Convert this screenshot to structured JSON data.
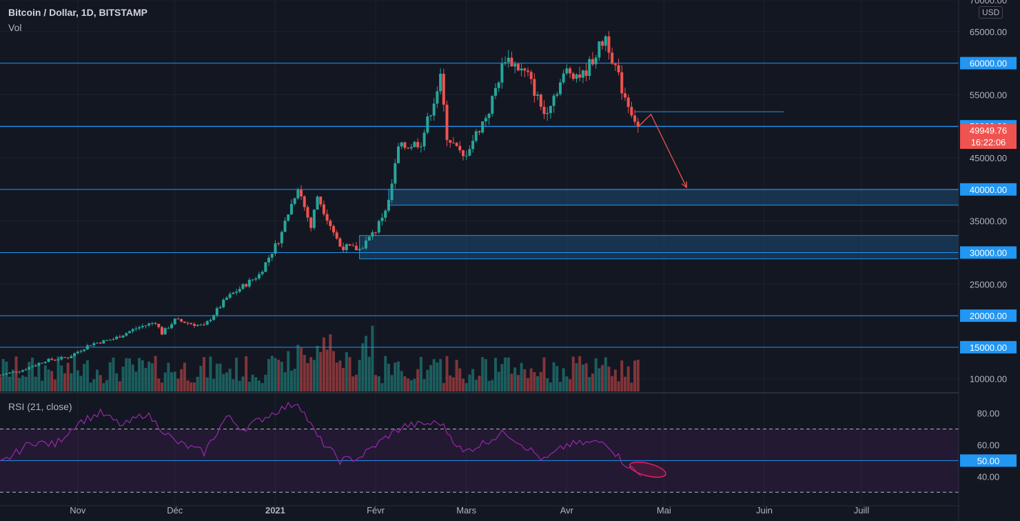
{
  "header": {
    "symbol_title": "Bitcoin / Dollar, 1D, BITSTAMP",
    "volume_label": "Vol",
    "currency": "USD",
    "rsi_label": "RSI (21, close)"
  },
  "price_badge": {
    "price": "49949.76",
    "countdown": "16:22:06"
  },
  "colors": {
    "background": "#131722",
    "grid": "#1e222d",
    "up": "#26a69a",
    "down": "#ef5350",
    "hline": "#2196f3",
    "zone": "#1e4a72",
    "rsi_line": "#9c27b0",
    "annotation": "#e91e63"
  },
  "chart_data": {
    "type": "candlestick",
    "title": "Bitcoin / Dollar, 1D, BITSTAMP",
    "x_ticks": [
      "Nov",
      "Déc",
      "2021",
      "Févr",
      "Mars",
      "Avr",
      "Mai",
      "Juin",
      "Juill"
    ],
    "x_tick_dates": [
      "2020-11-01",
      "2020-12-01",
      "2021-01-01",
      "2021-02-01",
      "2021-03-01",
      "2021-04-01",
      "2021-05-01",
      "2021-06-01",
      "2021-07-01"
    ],
    "date_range": [
      "2020-10-08",
      "2021-07-31"
    ],
    "price_axis": {
      "ylim": [
        8000,
        70000
      ],
      "ticks": [
        10000,
        15000,
        20000,
        25000,
        30000,
        35000,
        40000,
        45000,
        50000,
        55000,
        60000,
        65000,
        70000
      ],
      "tick_labels": [
        "10000.00",
        "15000.00",
        "20000.00",
        "25000.00",
        "30000.00",
        "35000.00",
        "40000.00",
        "45000.00",
        "50000.00",
        "55000.00",
        "60000.00",
        "65000.00",
        "70000.00"
      ]
    },
    "horizontal_levels": [
      {
        "price": 60000,
        "label": "60000.00"
      },
      {
        "price": 50000,
        "label": "50000.00"
      },
      {
        "price": 40000,
        "label": "40000.00"
      },
      {
        "price": 30000,
        "label": "30000.00"
      },
      {
        "price": 20000,
        "label": "20000.00"
      },
      {
        "price": 15000,
        "label": "15000.00"
      }
    ],
    "plain_levels": [
      {
        "price": 49949.76
      }
    ],
    "short_level": {
      "price": 52300,
      "from": "2021-04-22",
      "to": "2021-06-07"
    },
    "zones": [
      {
        "from": "2021-02-05",
        "low": 37500,
        "high": 40000
      },
      {
        "from": "2021-01-27",
        "low": 29000,
        "high": 32700
      }
    ],
    "price_path": [
      [
        "2020-10-08",
        10600
      ],
      [
        "2020-10-15",
        11400
      ],
      [
        "2020-10-22",
        12900
      ],
      [
        "2020-10-29",
        13400
      ],
      [
        "2020-11-05",
        15500
      ],
      [
        "2020-11-12",
        16300
      ],
      [
        "2020-11-19",
        18000
      ],
      [
        "2020-11-25",
        19000
      ],
      [
        "2020-11-27",
        17200
      ],
      [
        "2020-12-01",
        19300
      ],
      [
        "2020-12-10",
        18300
      ],
      [
        "2020-12-17",
        22800
      ],
      [
        "2020-12-27",
        26500
      ],
      [
        "2021-01-02",
        32000
      ],
      [
        "2021-01-08",
        40500
      ],
      [
        "2021-01-12",
        34000
      ],
      [
        "2021-01-14",
        39000
      ],
      [
        "2021-01-21",
        31000
      ],
      [
        "2021-01-27",
        30500
      ],
      [
        "2021-02-01",
        33500
      ],
      [
        "2021-02-05",
        38000
      ],
      [
        "2021-02-08",
        46500
      ],
      [
        "2021-02-15",
        47500
      ],
      [
        "2021-02-21",
        57500
      ],
      [
        "2021-02-23",
        48500
      ],
      [
        "2021-02-28",
        45000
      ],
      [
        "2021-03-08",
        52500
      ],
      [
        "2021-03-13",
        61000
      ],
      [
        "2021-03-20",
        58000
      ],
      [
        "2021-03-25",
        52000
      ],
      [
        "2021-04-01",
        58800
      ],
      [
        "2021-04-06",
        58000
      ],
      [
        "2021-04-13",
        64200
      ],
      [
        "2021-04-18",
        56000
      ],
      [
        "2021-04-23",
        49949.76
      ]
    ],
    "annotations": {
      "arrow_path": [
        [
          "2021-04-23",
          49900
        ],
        [
          "2021-04-27",
          51900
        ],
        [
          "2021-05-08",
          40300
        ]
      ],
      "rsi_ellipse": {
        "center_date": "2021-04-26",
        "rsi": 46
      }
    },
    "rsi_axis": {
      "ylim": [
        24,
        92
      ],
      "ticks": [
        40,
        60,
        80
      ],
      "tick_labels": [
        "40.00",
        "60.00",
        "80.00"
      ],
      "bands": [
        30,
        70
      ],
      "level": {
        "value": 50,
        "label": "50.00"
      }
    },
    "rsi_path": [
      [
        "2020-10-08",
        48
      ],
      [
        "2020-10-18",
        62
      ],
      [
        "2020-10-25",
        60
      ],
      [
        "2020-11-01",
        74
      ],
      [
        "2020-11-08",
        80
      ],
      [
        "2020-11-15",
        72
      ],
      [
        "2020-11-22",
        80
      ],
      [
        "2020-11-27",
        70
      ],
      [
        "2020-12-01",
        62
      ],
      [
        "2020-12-10",
        55
      ],
      [
        "2020-12-17",
        78
      ],
      [
        "2020-12-22",
        70
      ],
      [
        "2021-01-02",
        82
      ],
      [
        "2021-01-08",
        87
      ],
      [
        "2021-01-14",
        65
      ],
      [
        "2021-01-21",
        50
      ],
      [
        "2021-01-27",
        52
      ],
      [
        "2021-02-05",
        66
      ],
      [
        "2021-02-10",
        72
      ],
      [
        "2021-02-21",
        74
      ],
      [
        "2021-02-28",
        55
      ],
      [
        "2021-03-13",
        68
      ],
      [
        "2021-03-20",
        58
      ],
      [
        "2021-03-25",
        50
      ],
      [
        "2021-04-01",
        60
      ],
      [
        "2021-04-13",
        62
      ],
      [
        "2021-04-18",
        50
      ],
      [
        "2021-04-24",
        40
      ]
    ]
  }
}
